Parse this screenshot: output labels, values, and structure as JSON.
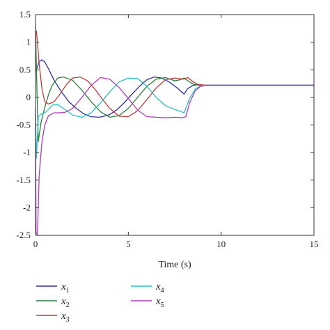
{
  "chart_data": {
    "type": "line",
    "xlabel": "Time (s)",
    "ylabel": "",
    "xlim": [
      0,
      15
    ],
    "ylim": [
      -2.5,
      1.5
    ],
    "xticks": [
      0,
      5,
      10,
      15
    ],
    "yticks": [
      1.5,
      1,
      0.5,
      0,
      -0.5,
      -1,
      -1.5,
      -2,
      -2.5
    ],
    "grid": false,
    "legend_position": "bottom",
    "series": [
      {
        "name": "x1",
        "base": "x",
        "sub": "1",
        "color": "#2e2e9e",
        "x": [
          0,
          0.05,
          0.1,
          0.2,
          0.35,
          0.5,
          0.7,
          1.0,
          1.4,
          1.8,
          2.2,
          2.6,
          3.0,
          3.4,
          3.6,
          4.0,
          4.4,
          4.8,
          5.2,
          5.6,
          6.0,
          6.4,
          6.8,
          7.2,
          7.6,
          8.0,
          8.2,
          8.5,
          8.8,
          9.2,
          9.6,
          10,
          11,
          12,
          13,
          14,
          15
        ],
        "y": [
          0.5,
          0.5,
          0.55,
          0.65,
          0.68,
          0.64,
          0.52,
          0.31,
          0.1,
          -0.08,
          -0.2,
          -0.3,
          -0.35,
          -0.36,
          -0.35,
          -0.31,
          -0.22,
          -0.09,
          0.06,
          0.2,
          0.32,
          0.37,
          0.35,
          0.28,
          0.18,
          0.06,
          0.16,
          0.22,
          0.23,
          0.22,
          0.22,
          0.22,
          0.22,
          0.22,
          0.22,
          0.22,
          0.22
        ]
      },
      {
        "name": "x2",
        "base": "x",
        "sub": "2",
        "color": "#2a7f3a",
        "x": [
          0,
          0.05,
          0.15,
          0.3,
          0.5,
          0.7,
          0.9,
          1.2,
          1.5,
          2.0,
          2.5,
          3.0,
          3.5,
          4.0,
          4.5,
          5.0,
          5.5,
          6.0,
          6.5,
          7.0,
          7.5,
          7.8,
          8.0,
          8.2,
          8.5,
          8.8,
          9.2,
          9.6,
          10,
          11,
          12,
          13,
          14,
          15
        ],
        "y": [
          1.3,
          0.5,
          -0.8,
          -0.45,
          -0.18,
          0.05,
          0.22,
          0.35,
          0.37,
          0.31,
          0.13,
          -0.08,
          -0.26,
          -0.36,
          -0.33,
          -0.2,
          0.0,
          0.2,
          0.33,
          0.36,
          0.3,
          0.32,
          0.35,
          0.3,
          0.24,
          0.22,
          0.22,
          0.22,
          0.22,
          0.22,
          0.22,
          0.22,
          0.22,
          0.22
        ]
      },
      {
        "name": "x3",
        "base": "x",
        "sub": "3",
        "color": "#c03a3a",
        "x": [
          0,
          0.05,
          0.1,
          0.2,
          0.35,
          0.5,
          0.7,
          1.0,
          1.3,
          1.7,
          2.0,
          2.4,
          2.8,
          3.2,
          3.6,
          4.0,
          4.5,
          5.0,
          5.5,
          6.0,
          6.5,
          7.0,
          7.5,
          8.0,
          8.2,
          8.5,
          8.8,
          9.2,
          9.6,
          10,
          11,
          12,
          13,
          14,
          15
        ],
        "y": [
          1.1,
          1.2,
          1.0,
          0.6,
          0.15,
          -0.08,
          -0.12,
          -0.08,
          0.05,
          0.25,
          0.35,
          0.37,
          0.3,
          0.15,
          -0.03,
          -0.2,
          -0.34,
          -0.35,
          -0.24,
          -0.04,
          0.17,
          0.32,
          0.35,
          0.33,
          0.36,
          0.28,
          0.23,
          0.22,
          0.22,
          0.22,
          0.22,
          0.22,
          0.22,
          0.22,
          0.22
        ]
      },
      {
        "name": "x4",
        "base": "x",
        "sub": "4",
        "color": "#2bbfbf",
        "x": [
          0,
          0.05,
          0.15,
          0.3,
          0.5,
          0.7,
          0.9,
          1.2,
          1.5,
          2.0,
          2.5,
          3.0,
          3.5,
          4.0,
          4.5,
          5.0,
          5.5,
          6.0,
          6.5,
          7.0,
          7.5,
          7.8,
          8.0,
          8.3,
          8.6,
          8.9,
          9.2,
          9.6,
          10,
          11,
          12,
          13,
          14,
          15
        ],
        "y": [
          -0.3,
          -1.1,
          -0.35,
          -0.3,
          -0.28,
          -0.22,
          -0.14,
          -0.13,
          -0.2,
          -0.32,
          -0.36,
          -0.28,
          -0.1,
          0.1,
          0.28,
          0.35,
          0.34,
          0.2,
          0.0,
          -0.15,
          -0.22,
          -0.25,
          -0.28,
          -0.02,
          0.15,
          0.21,
          0.22,
          0.22,
          0.22,
          0.22,
          0.22,
          0.22,
          0.22,
          0.22
        ]
      },
      {
        "name": "x5",
        "base": "x",
        "sub": "5",
        "color": "#b03ab8",
        "x": [
          0,
          0.03,
          0.1,
          0.2,
          0.35,
          0.5,
          0.7,
          1.0,
          1.3,
          1.6,
          2.0,
          2.5,
          3.0,
          3.5,
          4.0,
          4.5,
          5.0,
          5.5,
          6.0,
          6.5,
          7.0,
          7.5,
          7.9,
          8.1,
          8.3,
          8.6,
          8.9,
          9.2,
          9.6,
          10,
          11,
          12,
          13,
          14,
          15
        ],
        "y": [
          -0.2,
          -2.45,
          -2.5,
          -1.4,
          -0.8,
          -0.5,
          -0.33,
          -0.28,
          -0.28,
          -0.27,
          -0.2,
          0.0,
          0.22,
          0.36,
          0.33,
          0.18,
          -0.02,
          -0.23,
          -0.35,
          -0.36,
          -0.37,
          -0.36,
          -0.37,
          -0.35,
          -0.1,
          0.12,
          0.2,
          0.22,
          0.22,
          0.22,
          0.22,
          0.22,
          0.22,
          0.22,
          0.22
        ]
      }
    ]
  }
}
